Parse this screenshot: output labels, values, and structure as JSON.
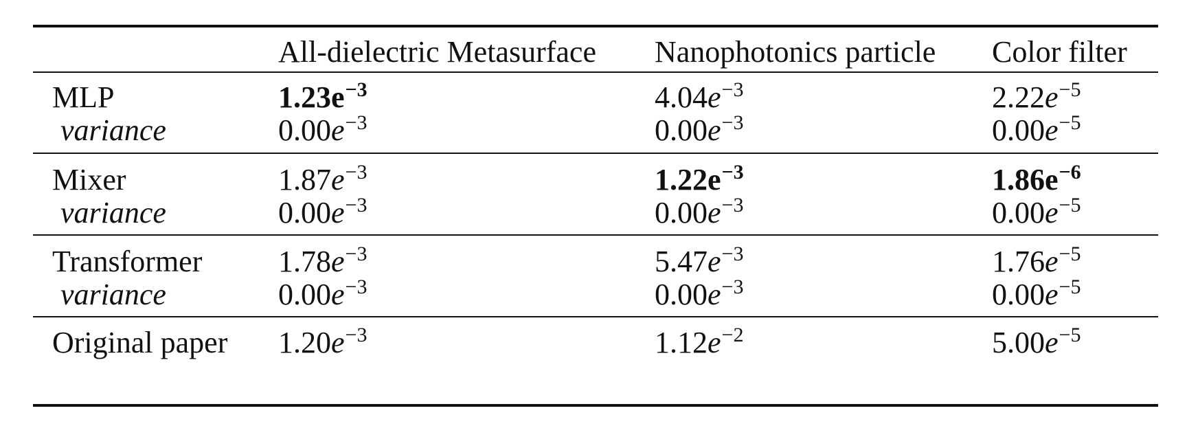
{
  "table": {
    "headers": [
      "",
      "All-dielectric Metasurface",
      "Nanophotonics particle",
      "Color filter"
    ],
    "groups": [
      {
        "model": "MLP",
        "variance_label": "variance",
        "values": [
          {
            "mantissa": "1.23",
            "exponent": "−3",
            "bold": true
          },
          {
            "mantissa": "4.04",
            "exponent": "−3",
            "bold": false
          },
          {
            "mantissa": "2.22",
            "exponent": "−5",
            "bold": false
          }
        ],
        "variance": [
          {
            "mantissa": "0.00",
            "exponent": "−3"
          },
          {
            "mantissa": "0.00",
            "exponent": "−3"
          },
          {
            "mantissa": "0.00",
            "exponent": "−5"
          }
        ]
      },
      {
        "model": "Mixer",
        "variance_label": "variance",
        "values": [
          {
            "mantissa": "1.87",
            "exponent": "−3",
            "bold": false
          },
          {
            "mantissa": "1.22",
            "exponent": "−3",
            "bold": true
          },
          {
            "mantissa": "1.86",
            "exponent": "−6",
            "bold": true
          }
        ],
        "variance": [
          {
            "mantissa": "0.00",
            "exponent": "−3"
          },
          {
            "mantissa": "0.00",
            "exponent": "−3"
          },
          {
            "mantissa": "0.00",
            "exponent": "−5"
          }
        ]
      },
      {
        "model": "Transformer",
        "variance_label": "variance",
        "values": [
          {
            "mantissa": "1.78",
            "exponent": "−3",
            "bold": false
          },
          {
            "mantissa": "5.47",
            "exponent": "−3",
            "bold": false
          },
          {
            "mantissa": "1.76",
            "exponent": "−5",
            "bold": false
          }
        ],
        "variance": [
          {
            "mantissa": "0.00",
            "exponent": "−3"
          },
          {
            "mantissa": "0.00",
            "exponent": "−3"
          },
          {
            "mantissa": "0.00",
            "exponent": "−5"
          }
        ]
      },
      {
        "model": "Original paper",
        "values": [
          {
            "mantissa": "1.20",
            "exponent": "−3",
            "bold": false
          },
          {
            "mantissa": "1.12",
            "exponent": "−2",
            "bold": false
          },
          {
            "mantissa": "5.00",
            "exponent": "−5",
            "bold": false
          }
        ]
      }
    ]
  }
}
